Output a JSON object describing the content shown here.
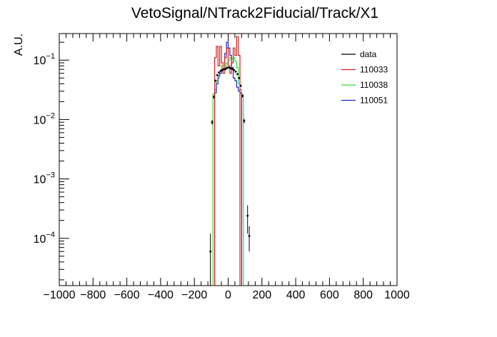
{
  "chart_data": {
    "type": "histogram",
    "title": "VetoSignal/NTrack2Fiducial/Track/X1",
    "xlabel": "",
    "ylabel": "A.U.",
    "xlim": [
      -1000,
      1000
    ],
    "ylim": [
      1.6e-05,
      0.28
    ],
    "yscale": "log",
    "grid": false,
    "legend_position": "top-right",
    "x_ticks": [
      -1000,
      -800,
      -600,
      -400,
      -200,
      0,
      200,
      400,
      600,
      800,
      1000
    ],
    "x_tick_labels": [
      "−1000",
      "−800",
      "−600",
      "−400",
      "−200",
      "0",
      "200",
      "400",
      "600",
      "800",
      "1000"
    ],
    "y_ticks": [
      0.0001,
      0.001,
      0.01,
      0.1
    ],
    "y_tick_labels": [
      {
        "base": "10",
        "exp": "−4"
      },
      {
        "base": "10",
        "exp": "−3"
      },
      {
        "base": "10",
        "exp": "−2"
      },
      {
        "base": "10",
        "exp": "−1"
      }
    ],
    "bin_width": 10,
    "series": [
      {
        "name": "data",
        "color": "#000000",
        "style": "points",
        "points": [
          {
            "x": -105,
            "y": 6e-05,
            "err": 6e-05
          },
          {
            "x": -95,
            "y": 0.009,
            "err": 0.0008
          },
          {
            "x": -85,
            "y": 0.024,
            "err": 0.0015
          },
          {
            "x": -75,
            "y": 0.045,
            "err": 0.002
          },
          {
            "x": -65,
            "y": 0.056,
            "err": 0.002
          },
          {
            "x": -55,
            "y": 0.062,
            "err": 0.002
          },
          {
            "x": -45,
            "y": 0.066,
            "err": 0.002
          },
          {
            "x": -35,
            "y": 0.069,
            "err": 0.002
          },
          {
            "x": -25,
            "y": 0.07,
            "err": 0.002
          },
          {
            "x": -15,
            "y": 0.071,
            "err": 0.002
          },
          {
            "x": -5,
            "y": 0.074,
            "err": 0.002
          },
          {
            "x": 5,
            "y": 0.075,
            "err": 0.002
          },
          {
            "x": 15,
            "y": 0.073,
            "err": 0.002
          },
          {
            "x": 25,
            "y": 0.071,
            "err": 0.002
          },
          {
            "x": 35,
            "y": 0.068,
            "err": 0.002
          },
          {
            "x": 45,
            "y": 0.064,
            "err": 0.002
          },
          {
            "x": 55,
            "y": 0.058,
            "err": 0.002
          },
          {
            "x": 65,
            "y": 0.05,
            "err": 0.002
          },
          {
            "x": 75,
            "y": 0.037,
            "err": 0.0015
          },
          {
            "x": 85,
            "y": 0.025,
            "err": 0.0015
          },
          {
            "x": 95,
            "y": 0.0095,
            "err": 0.0008
          },
          {
            "x": 115,
            "y": 0.00024,
            "err": 0.00012
          },
          {
            "x": 125,
            "y": 0.00011,
            "err": 5e-05
          }
        ]
      },
      {
        "name": "110033",
        "color": "#cc2222",
        "style": "step",
        "bins": [
          {
            "lo": -80,
            "hi": -70,
            "y": 0.11
          },
          {
            "lo": -70,
            "hi": -60,
            "y": 0.17
          },
          {
            "lo": -60,
            "hi": -50,
            "y": 0.08
          },
          {
            "lo": -50,
            "hi": -40,
            "y": 0.17
          },
          {
            "lo": -40,
            "hi": -30,
            "y": 0.09
          },
          {
            "lo": -30,
            "hi": -20,
            "y": 0.06
          },
          {
            "lo": -20,
            "hi": -10,
            "y": 0.11
          },
          {
            "lo": -10,
            "hi": 0,
            "y": 0.16
          },
          {
            "lo": 0,
            "hi": 10,
            "y": 0.08
          },
          {
            "lo": 10,
            "hi": 20,
            "y": 0.06
          },
          {
            "lo": 20,
            "hi": 30,
            "y": 0.09
          },
          {
            "lo": 30,
            "hi": 40,
            "y": 0.16
          },
          {
            "lo": 40,
            "hi": 50,
            "y": 0.12
          },
          {
            "lo": 50,
            "hi": 60,
            "y": 0.25
          },
          {
            "lo": 60,
            "hi": 70,
            "y": 0.12
          }
        ]
      },
      {
        "name": "110038",
        "color": "#33dd33",
        "style": "step",
        "bins": [
          {
            "lo": -90,
            "hi": -80,
            "y": 0.027
          },
          {
            "lo": -80,
            "hi": -70,
            "y": 0.032
          },
          {
            "lo": -70,
            "hi": -60,
            "y": 0.045
          },
          {
            "lo": -60,
            "hi": -50,
            "y": 0.05
          },
          {
            "lo": -50,
            "hi": -40,
            "y": 0.06
          },
          {
            "lo": -40,
            "hi": -30,
            "y": 0.08
          },
          {
            "lo": -30,
            "hi": -20,
            "y": 0.07
          },
          {
            "lo": -20,
            "hi": -10,
            "y": 0.075
          },
          {
            "lo": -10,
            "hi": 0,
            "y": 0.09
          },
          {
            "lo": 0,
            "hi": 10,
            "y": 0.1
          },
          {
            "lo": 10,
            "hi": 20,
            "y": 0.11
          },
          {
            "lo": 20,
            "hi": 30,
            "y": 0.105
          },
          {
            "lo": 30,
            "hi": 40,
            "y": 0.11
          },
          {
            "lo": 40,
            "hi": 50,
            "y": 0.095
          },
          {
            "lo": 50,
            "hi": 60,
            "y": 0.075
          },
          {
            "lo": 60,
            "hi": 70,
            "y": 0.04
          },
          {
            "lo": 70,
            "hi": 80,
            "y": 0.032
          },
          {
            "lo": 80,
            "hi": 90,
            "y": 0.026
          }
        ]
      },
      {
        "name": "110051",
        "color": "#2222cc",
        "style": "step",
        "bins": [
          {
            "lo": -80,
            "hi": -70,
            "y": 0.028
          },
          {
            "lo": -70,
            "hi": -60,
            "y": 0.04
          },
          {
            "lo": -60,
            "hi": -50,
            "y": 0.055
          },
          {
            "lo": -50,
            "hi": -40,
            "y": 0.06
          },
          {
            "lo": -40,
            "hi": -30,
            "y": 0.065
          },
          {
            "lo": -30,
            "hi": -20,
            "y": 0.07
          },
          {
            "lo": -20,
            "hi": -10,
            "y": 0.13
          },
          {
            "lo": -10,
            "hi": 0,
            "y": 0.2
          },
          {
            "lo": 0,
            "hi": 10,
            "y": 0.16
          },
          {
            "lo": 10,
            "hi": 20,
            "y": 0.12
          },
          {
            "lo": 20,
            "hi": 30,
            "y": 0.075
          },
          {
            "lo": 30,
            "hi": 40,
            "y": 0.05
          },
          {
            "lo": 40,
            "hi": 50,
            "y": 0.045
          },
          {
            "lo": 50,
            "hi": 60,
            "y": 0.035
          },
          {
            "lo": 60,
            "hi": 70,
            "y": 0.03
          },
          {
            "lo": 70,
            "hi": 80,
            "y": 0.028
          }
        ]
      }
    ]
  }
}
